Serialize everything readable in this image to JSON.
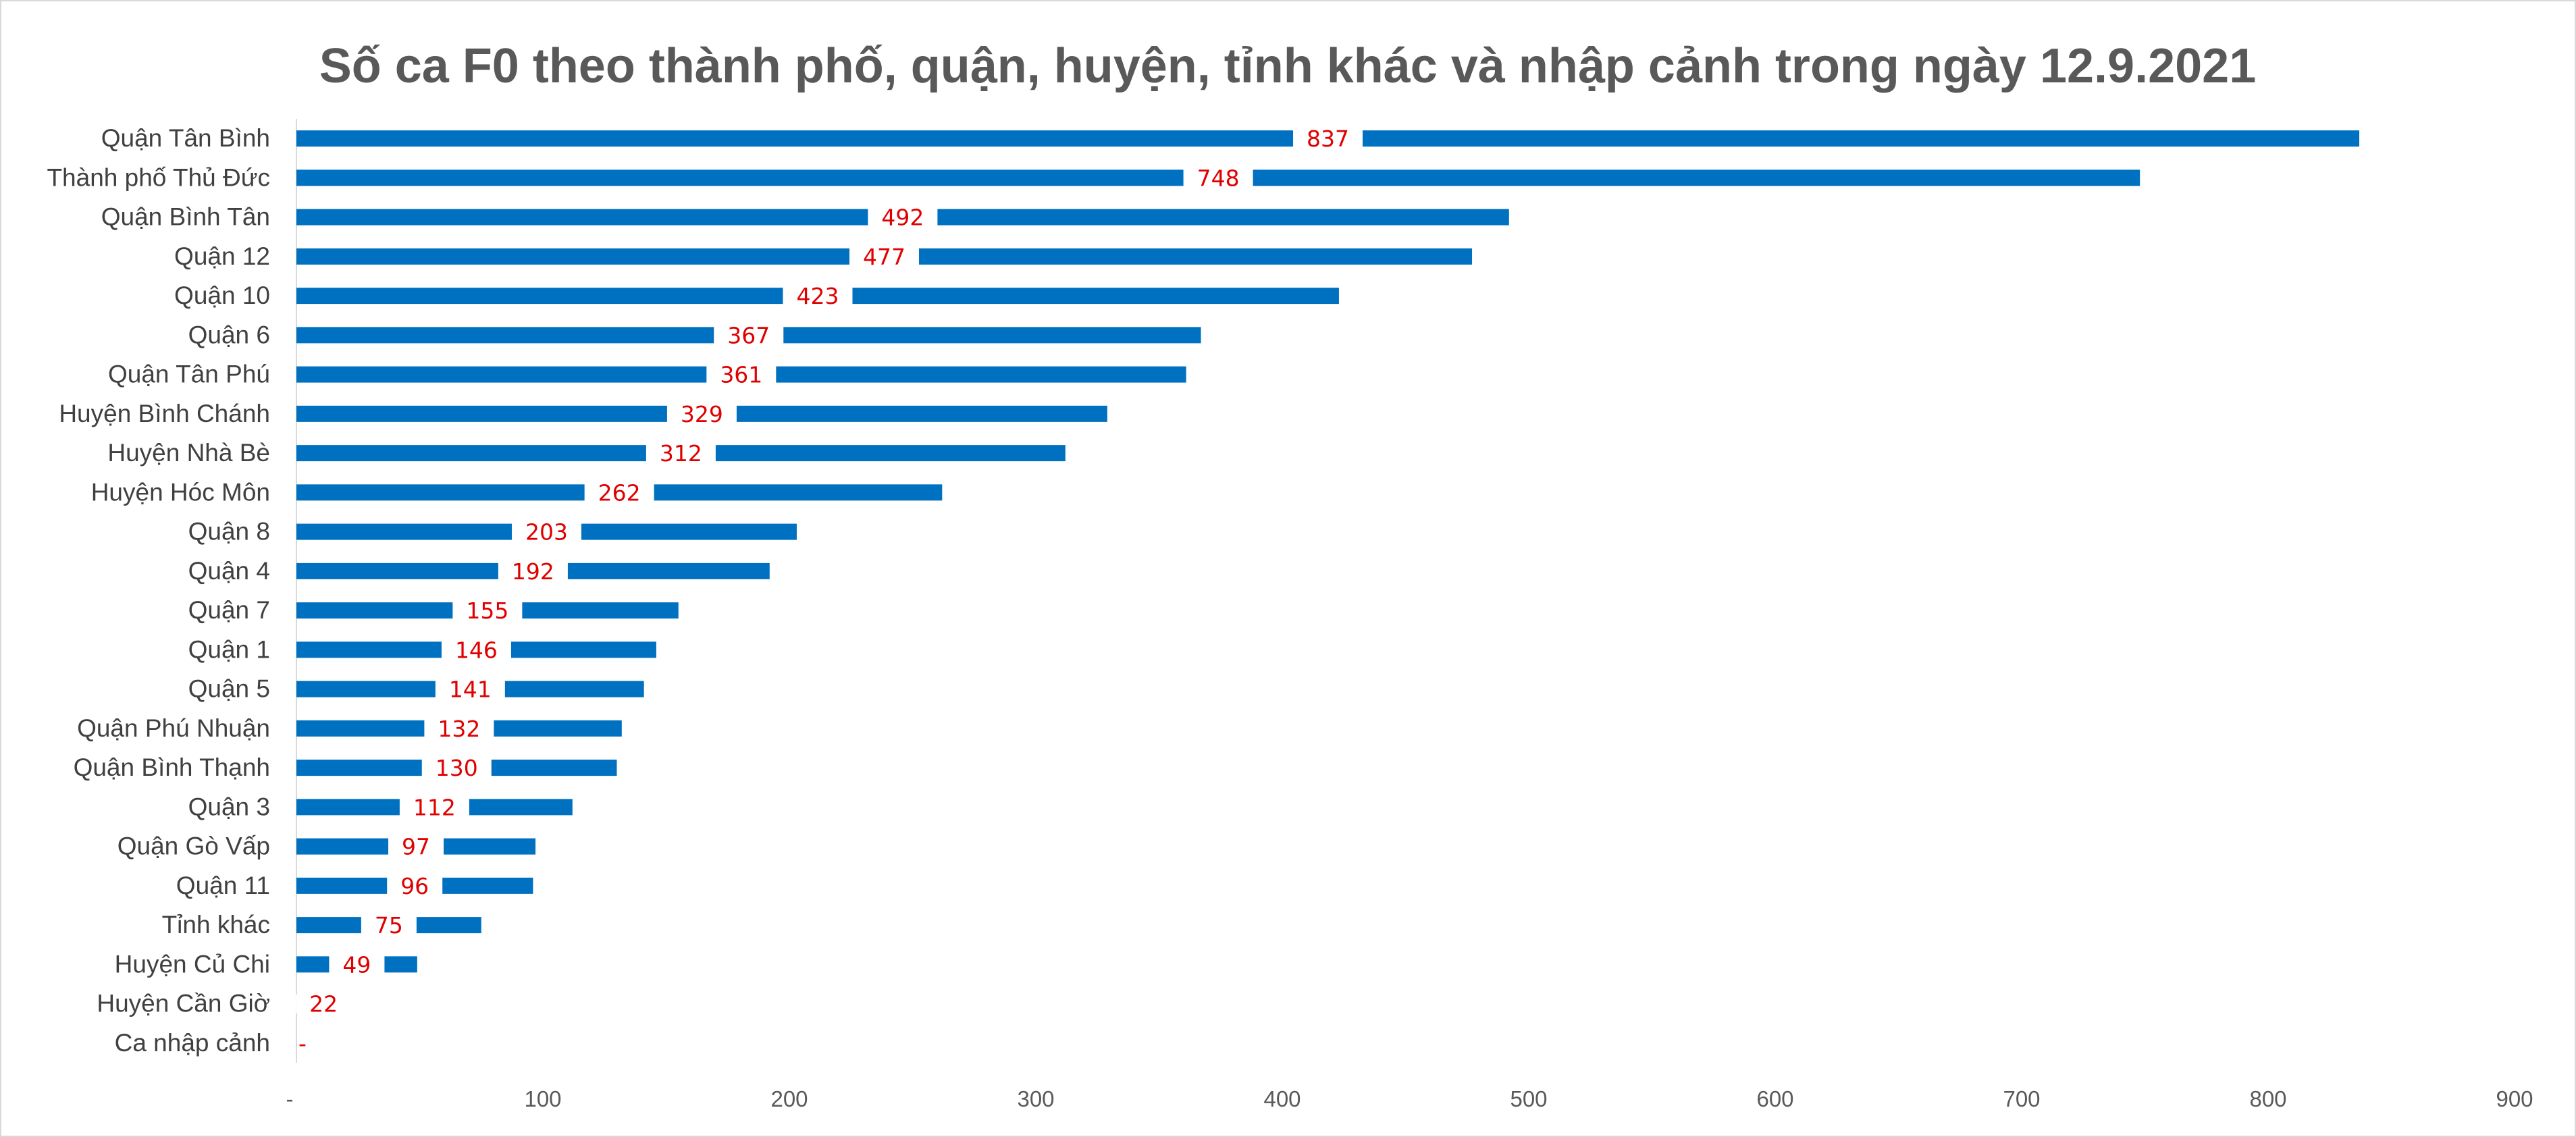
{
  "chart_data": {
    "type": "bar",
    "orientation": "horizontal",
    "title": "Số ca F0 theo thành phố, quận, huyện, tỉnh khác và nhập cảnh trong ngày 12.9.2021",
    "xlabel": "",
    "ylabel": "",
    "categories": [
      "Quận Tân Bình",
      "Thành phố Thủ Đức",
      "Quận Bình Tân",
      "Quận 12",
      "Quận 10",
      "Quận 6",
      "Quận Tân Phú",
      "Huyện Bình Chánh",
      "Huyện Nhà Bè",
      "Huyện Hóc Môn",
      "Quận 8",
      "Quận 4",
      "Quận 7",
      "Quận 1",
      "Quận 5",
      "Quận Phú Nhuận",
      "Quận Bình Thạnh",
      "Quận 3",
      "Quận Gò Vấp",
      "Quận 11",
      "Tỉnh khác",
      "Huyện Củ Chi",
      "Huyện Cần Giờ",
      "Ca nhập cảnh"
    ],
    "values": [
      837,
      748,
      492,
      477,
      423,
      367,
      361,
      329,
      312,
      262,
      203,
      192,
      155,
      146,
      141,
      132,
      130,
      112,
      97,
      96,
      75,
      49,
      22,
      0
    ],
    "data_labels": [
      "837",
      "748",
      "492",
      "477",
      "423",
      "367",
      "361",
      "329",
      "312",
      "262",
      "203",
      "192",
      "155",
      "146",
      "141",
      "132",
      "130",
      "112",
      "97",
      "96",
      "75",
      "49",
      "22",
      "-"
    ],
    "xlim": [
      0,
      900
    ],
    "x_ticks": [
      0,
      100,
      200,
      300,
      400,
      500,
      600,
      700,
      800,
      900
    ],
    "x_tick_labels": [
      "-",
      "100",
      "200",
      "300",
      "400",
      "500",
      "600",
      "700",
      "800",
      "900"
    ],
    "grid": false,
    "legend": "none",
    "colors": {
      "bar": "#0070c0",
      "data_label": "#e00000",
      "title": "#595959",
      "axis_text": "#404040",
      "axis_line": "#d9d9d9"
    }
  }
}
